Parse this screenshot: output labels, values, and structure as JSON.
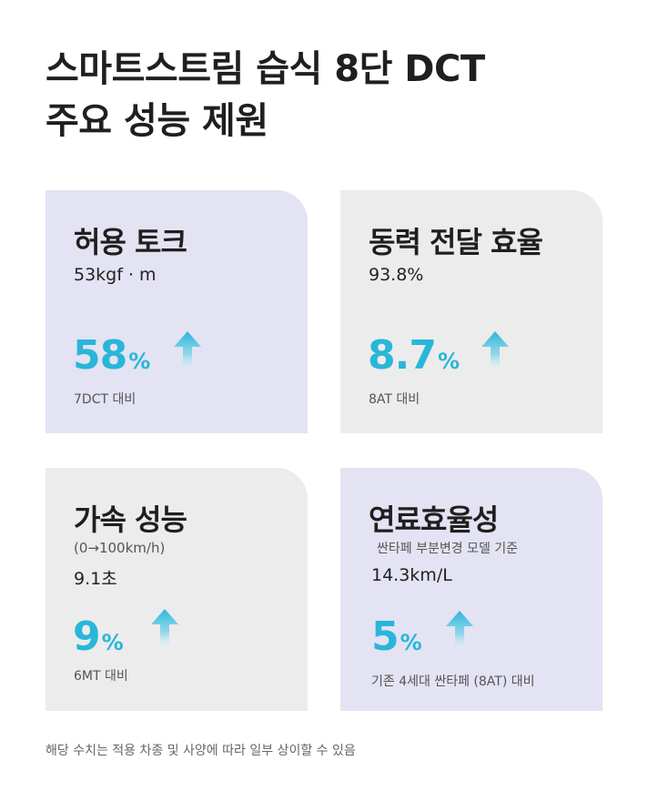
{
  "title": {
    "line1": "스마트스트림 습식 8단 DCT",
    "line2": "주요 성능 제원"
  },
  "colors": {
    "accent": "#29b6d9",
    "card_purple": "#e3e3f3",
    "card_gray": "#ececec"
  },
  "cards": [
    {
      "title": "허용 토크",
      "value": "53kgf · m",
      "percent": "58",
      "percent_sign": "%",
      "compare": "7DCT 대비",
      "icon": "up-arrow-icon"
    },
    {
      "title": "동력 전달 효율",
      "value": "93.8%",
      "percent": "8.7",
      "percent_sign": "%",
      "compare": "8AT 대비",
      "icon": "up-arrow-icon"
    },
    {
      "title": "가속 성능",
      "subtitle": "(0→100km/h)",
      "value": "9.1초",
      "percent": "9",
      "percent_sign": "%",
      "compare": "6MT 대비",
      "icon": "up-arrow-icon"
    },
    {
      "title": "연료효율성",
      "subtitle": "싼타페 부분변경 모델 기준",
      "value": "14.3km/L",
      "percent": "5",
      "percent_sign": "%",
      "compare": "기존 4세대 싼타페 (8AT) 대비",
      "icon": "up-arrow-icon"
    }
  ],
  "footnote": "해당 수치는 적용 차종 및 사양에 따라 일부 상이할 수 있음"
}
